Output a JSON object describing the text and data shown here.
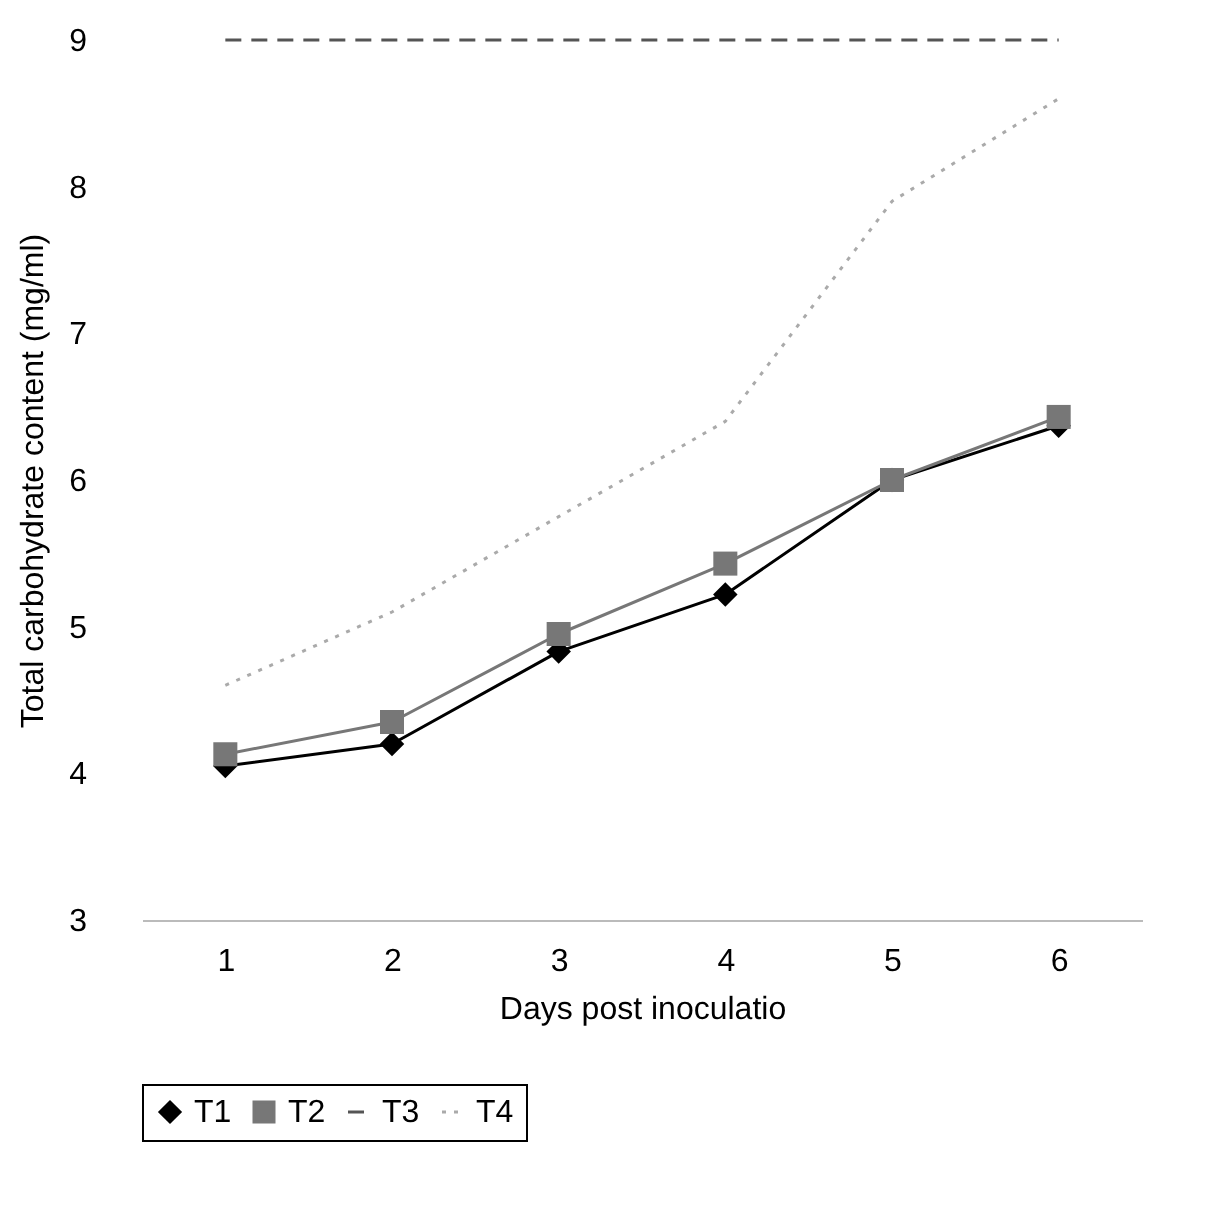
{
  "chart_data": {
    "type": "line",
    "xlabel": "Days post inoculatio",
    "ylabel": "Total carbohydrate content (mg/ml)",
    "categories": [
      "1",
      "2",
      "3",
      "4",
      "5",
      "6"
    ],
    "series": [
      {
        "name": "T1",
        "color": "#000000",
        "marker": "diamond",
        "line_style": "solid",
        "values": [
          4.05,
          4.2,
          4.83,
          5.22,
          6.0,
          6.37
        ]
      },
      {
        "name": "T2",
        "color": "#777777",
        "marker": "square",
        "line_style": "solid",
        "values": [
          4.13,
          4.35,
          4.95,
          5.43,
          6.0,
          6.43
        ]
      },
      {
        "name": "T3",
        "color": "#555555",
        "marker": "none",
        "line_style": "dashed",
        "values": [
          9,
          9,
          9,
          9,
          9,
          9
        ]
      },
      {
        "name": "T4",
        "color": "#aaaaaa",
        "marker": "none",
        "line_style": "dotted",
        "values": [
          4.6,
          5.1,
          5.75,
          6.4,
          7.9,
          8.6
        ]
      }
    ],
    "ylim": [
      3,
      9
    ],
    "yticks": [
      3,
      4,
      5,
      6,
      7,
      8,
      9
    ],
    "grid": false,
    "legend": "bottom"
  }
}
